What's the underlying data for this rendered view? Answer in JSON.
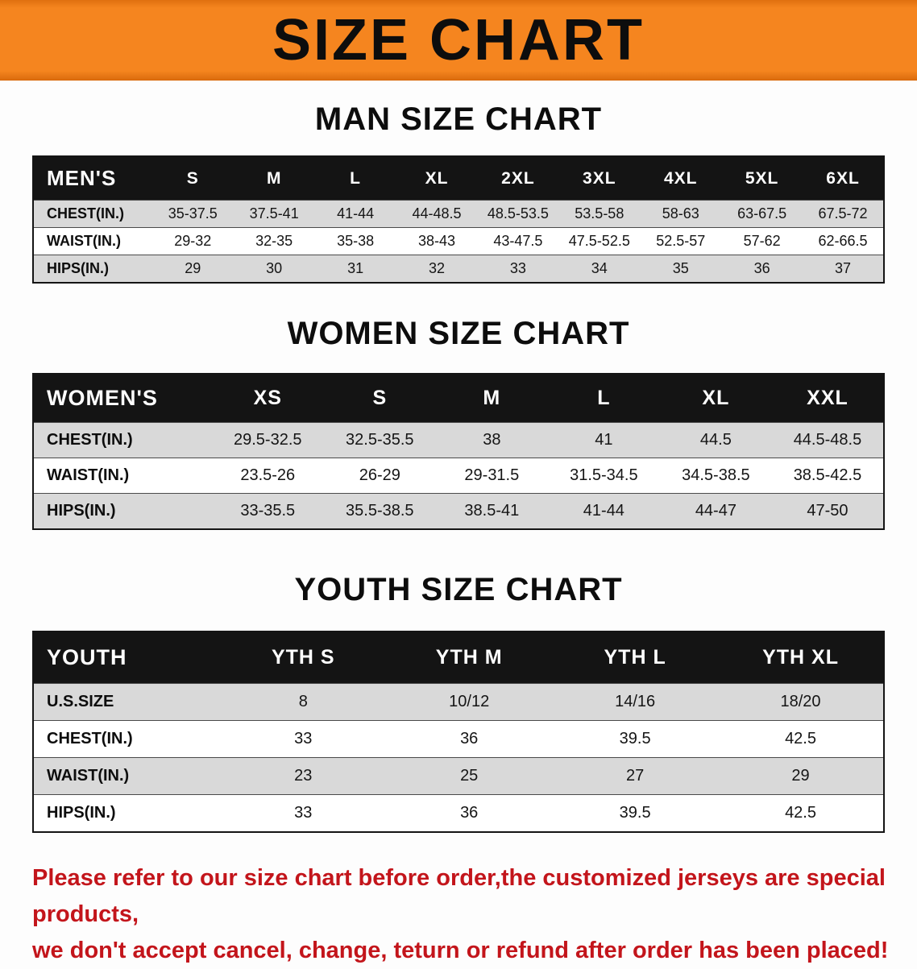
{
  "banner": {
    "title": "SIZE CHART",
    "bg_color": "#f5851f",
    "text_color": "#0d0d0d"
  },
  "colors": {
    "table_header_bg": "#141414",
    "row_alt_gray": "#d9d9d9",
    "disclaimer_red": "#c3151b"
  },
  "sections": [
    {
      "heading": "MAN SIZE CHART",
      "table": {
        "header": [
          "MEN'S",
          "S",
          "M",
          "L",
          "XL",
          "2XL",
          "3XL",
          "4XL",
          "5XL",
          "6XL"
        ],
        "rows": [
          [
            "CHEST(IN.)",
            "35-37.5",
            "37.5-41",
            "41-44",
            "44-48.5",
            "48.5-53.5",
            "53.5-58",
            "58-63",
            "63-67.5",
            "67.5-72"
          ],
          [
            "WAIST(IN.)",
            "29-32",
            "32-35",
            "35-38",
            "38-43",
            "43-47.5",
            "47.5-52.5",
            "52.5-57",
            "57-62",
            "62-66.5"
          ],
          [
            "HIPS(IN.)",
            "29",
            "30",
            "31",
            "32",
            "33",
            "34",
            "35",
            "36",
            "37"
          ]
        ]
      }
    },
    {
      "heading": "WOMEN SIZE CHART",
      "table": {
        "header": [
          "WOMEN'S",
          "XS",
          "S",
          "M",
          "L",
          "XL",
          "XXL"
        ],
        "rows": [
          [
            "CHEST(IN.)",
            "29.5-32.5",
            "32.5-35.5",
            "38",
            "41",
            "44.5",
            "44.5-48.5"
          ],
          [
            "WAIST(IN.)",
            "23.5-26",
            "26-29",
            "29-31.5",
            "31.5-34.5",
            "34.5-38.5",
            "38.5-42.5"
          ],
          [
            "HIPS(IN.)",
            "33-35.5",
            "35.5-38.5",
            "38.5-41",
            "41-44",
            "44-47",
            "47-50"
          ]
        ]
      }
    },
    {
      "heading": "YOUTH SIZE CHART",
      "table": {
        "header": [
          "YOUTH",
          "YTH S",
          "YTH M",
          "YTH L",
          "YTH XL"
        ],
        "rows": [
          [
            "U.S.SIZE",
            "8",
            "10/12",
            "14/16",
            "18/20"
          ],
          [
            "CHEST(IN.)",
            "33",
            "36",
            "39.5",
            "42.5"
          ],
          [
            "WAIST(IN.)",
            "23",
            "25",
            "27",
            "29"
          ],
          [
            "HIPS(IN.)",
            "33",
            "36",
            "39.5",
            "42.5"
          ]
        ]
      }
    }
  ],
  "disclaimer": {
    "line1": "Please refer to our size chart before order,the customized jerseys are special products,",
    "line2": "we don't accept cancel, change, teturn or refund after order has been placed!"
  }
}
